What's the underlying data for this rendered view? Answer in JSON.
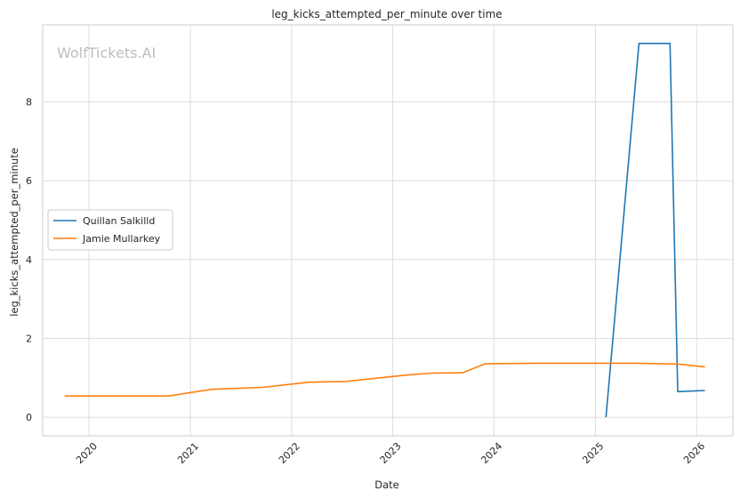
{
  "chart_data": {
    "type": "line",
    "title": "leg_kicks_attempted_per_minute over time",
    "xlabel": "Date",
    "ylabel": "leg_kicks_attempted_per_minute",
    "watermark": "WolfTickets.AI",
    "x_ticks": [
      "2020",
      "2021",
      "2022",
      "2023",
      "2024",
      "2025",
      "2026"
    ],
    "y_ticks": [
      "0",
      "2",
      "4",
      "6",
      "8"
    ],
    "xlim": [
      "2019-07-18",
      "2026-05-12"
    ],
    "ylim": [
      -0.47,
      9.95
    ],
    "grid": true,
    "legend_position": "center-left",
    "series": [
      {
        "name": "Quillan Salkilld",
        "color": "#1f77b4",
        "x": [
          "2025-02-08",
          "2025-06-07",
          "2025-09-27",
          "2025-10-25",
          "2026-01-31"
        ],
        "y": [
          0.0,
          9.48,
          9.48,
          0.65,
          0.68
        ]
      },
      {
        "name": "Jamie Mullarkey",
        "color": "#ff7f0e",
        "x": [
          "2019-10-05",
          "2020-10-15",
          "2021-03-18",
          "2021-09-18",
          "2022-03-05",
          "2022-07-16",
          "2023-02-18",
          "2023-05-20",
          "2023-09-10",
          "2023-12-01",
          "2024-06-01",
          "2025-06-01",
          "2025-10-25",
          "2026-01-31"
        ],
        "y": [
          0.54,
          0.54,
          0.71,
          0.76,
          0.89,
          0.91,
          1.07,
          1.12,
          1.13,
          1.36,
          1.37,
          1.37,
          1.35,
          1.28
        ]
      }
    ]
  }
}
